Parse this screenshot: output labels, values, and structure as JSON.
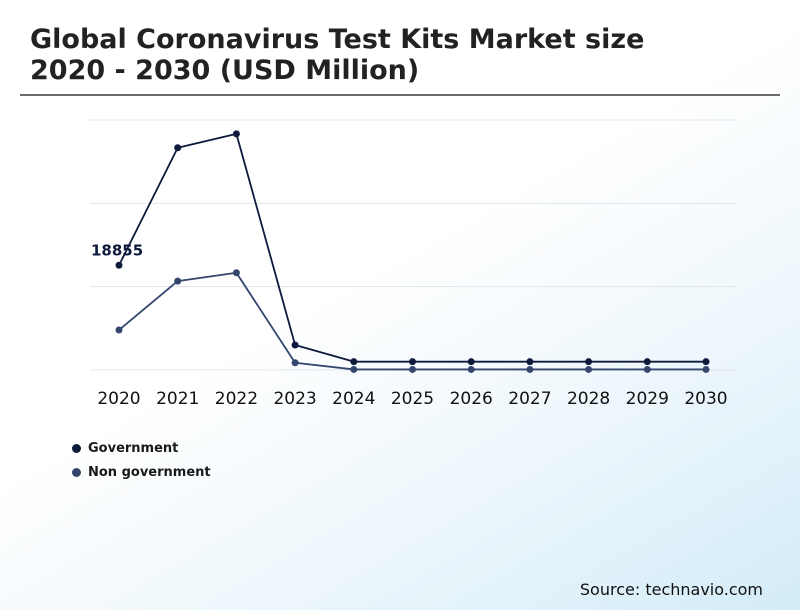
{
  "title": {
    "line1": "Global Coronavirus Test Kits Market size",
    "line2": "2020 - 2030 (USD Million)"
  },
  "source": "Source: technavio.com",
  "chart_data": {
    "type": "line",
    "title": "Global Coronavirus Test Kits Market size 2020 - 2030 (USD Million)",
    "xlabel": "",
    "ylabel": "",
    "categories": [
      "2020",
      "2021",
      "2022",
      "2023",
      "2024",
      "2025",
      "2026",
      "2027",
      "2028",
      "2029",
      "2030"
    ],
    "ylim": [
      0,
      45000
    ],
    "grid": true,
    "legend_position": "bottom-left",
    "series": [
      {
        "name": "Government",
        "color": "#0d1a3c",
        "values": [
          18855,
          40000,
          42500,
          4500,
          1500,
          1500,
          1500,
          1500,
          1500,
          1500,
          1500
        ]
      },
      {
        "name": "Non government",
        "color": "#35466e",
        "values": [
          7200,
          16000,
          17500,
          1300,
          100,
          100,
          100,
          100,
          100,
          100,
          100
        ]
      }
    ],
    "annotations": [
      {
        "series": 0,
        "index": 0,
        "text": "18855"
      }
    ]
  }
}
